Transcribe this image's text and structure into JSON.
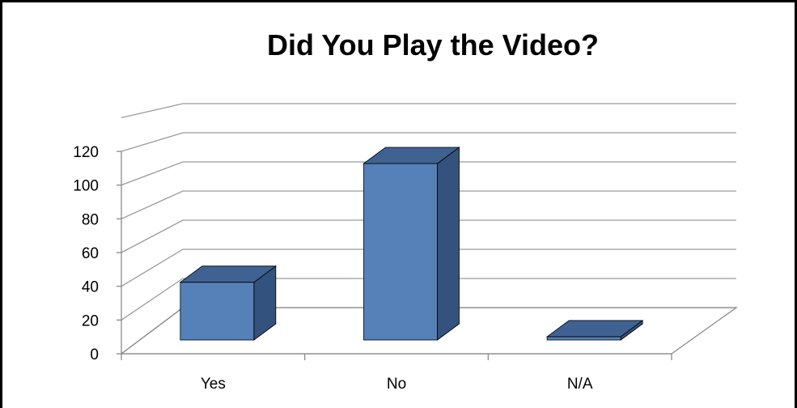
{
  "chart_data": {
    "type": "bar",
    "title": "Did You Play the Video?",
    "categories": [
      "Yes",
      "No",
      "N/A"
    ],
    "values": [
      35,
      107,
      2
    ],
    "ylim": [
      0,
      120
    ],
    "yticks": [
      "0",
      "20",
      "40",
      "60",
      "80",
      "100",
      "120"
    ],
    "grid": true,
    "legend": "none",
    "style": "3d-column",
    "colors": {
      "front": "#5580b8",
      "top": "#3f6293",
      "side": "#33527e",
      "border": "#000000"
    }
  }
}
